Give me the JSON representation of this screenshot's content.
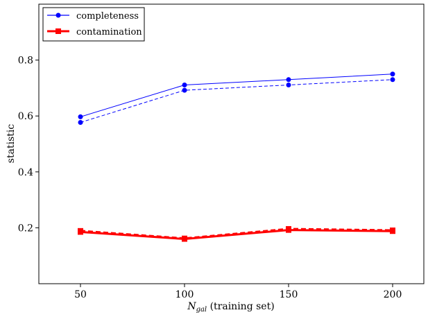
{
  "chart_data": {
    "type": "line",
    "title": "",
    "xlabel_main": "N",
    "xlabel_sub": "gal",
    "xlabel_rest": " (training set)",
    "ylabel": "statistic",
    "x": [
      50,
      100,
      150,
      200
    ],
    "xlim": [
      30,
      215
    ],
    "ylim": [
      0.0,
      1.0
    ],
    "xticks": [
      50,
      100,
      150,
      200
    ],
    "yticks": [
      0.2,
      0.4,
      0.6,
      0.8
    ],
    "ytick_labels": [
      "0.2",
      "0.4",
      "0.6",
      "0.8"
    ],
    "xtick_labels": [
      "50",
      "100",
      "150",
      "200"
    ],
    "grid": false,
    "legend_position": "top-left",
    "series": [
      {
        "name": "completeness",
        "color": "#0000ff",
        "marker": "circle",
        "linestyle": "solid",
        "linewidth": "thin",
        "values": [
          0.597,
          0.711,
          0.73,
          0.75
        ]
      },
      {
        "color": "#0000ff",
        "marker": "circle",
        "linestyle": "dashed",
        "linewidth": "thin",
        "values": [
          0.577,
          0.692,
          0.711,
          0.73
        ]
      },
      {
        "name": "contamination",
        "color": "#ff0000",
        "marker": "square",
        "linestyle": "solid",
        "linewidth": "thick",
        "values": [
          0.185,
          0.16,
          0.192,
          0.188
        ]
      },
      {
        "color": "#ff0000",
        "marker": "square",
        "linestyle": "dashed",
        "linewidth": "thick",
        "values": [
          0.189,
          0.162,
          0.196,
          0.191
        ]
      }
    ]
  }
}
